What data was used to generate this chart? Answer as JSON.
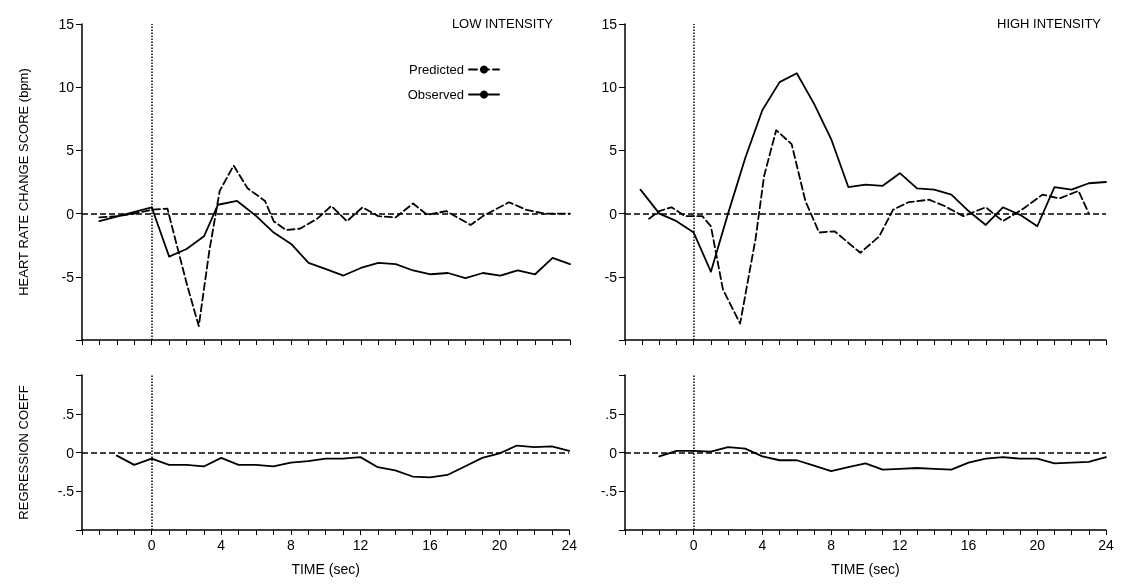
{
  "chart_data": [
    {
      "type": "line",
      "title": "LOW INTENSITY",
      "ylabel": "HEART RATE CHANGE SCORE (bpm)",
      "legend": "top right",
      "tick_labels": "y",
      "xlim": [
        -4,
        24
      ],
      "ylim": [
        -10,
        15
      ],
      "xticks": [
        {
          "value": -4,
          "label": null
        },
        {
          "value": -3,
          "label": null
        },
        {
          "value": -2,
          "label": null
        },
        {
          "value": -1,
          "label": null
        },
        0,
        {
          "value": 1,
          "label": null
        },
        {
          "value": 2,
          "label": null
        },
        {
          "value": 3,
          "label": null
        },
        4,
        {
          "value": 5,
          "label": null
        },
        {
          "value": 6,
          "label": null
        },
        {
          "value": 7,
          "label": null
        },
        8,
        {
          "value": 9,
          "label": null
        },
        {
          "value": 10,
          "label": null
        },
        {
          "value": 11,
          "label": null
        },
        12,
        {
          "value": 13,
          "label": null
        },
        {
          "value": 14,
          "label": null
        },
        {
          "value": 15,
          "label": null
        },
        16,
        {
          "value": 17,
          "label": null
        },
        {
          "value": 18,
          "label": null
        },
        {
          "value": 19,
          "label": null
        },
        20,
        {
          "value": 21,
          "label": null
        },
        {
          "value": 22,
          "label": null
        },
        {
          "value": 23,
          "label": null
        },
        24
      ],
      "yticks": [
        {
          "value": -10,
          "label": null
        },
        -5,
        0,
        5,
        10,
        15
      ],
      "ref_lines": [
        {
          "axis": "x",
          "value": 0,
          "line_style": "dotted"
        },
        {
          "axis": "y",
          "value": 0,
          "line_style": "dashed"
        }
      ],
      "series": [
        {
          "name": "Predicted",
          "color": "#000000",
          "line_style": "dashed",
          "x": [
            -3,
            -2,
            -1,
            0,
            0.9,
            2,
            2.7,
            3.3,
            3.9,
            4.7,
            5.5,
            6.5,
            7,
            7.7,
            8.5,
            9.5,
            10.3,
            11.2,
            12.1,
            13,
            14,
            15,
            15.8,
            16.9,
            18.3,
            19,
            20.5,
            21.5,
            22.5,
            24
          ],
          "values": [
            -0.3,
            -0.2,
            0,
            0.3,
            0.4,
            -5.5,
            -8.9,
            -3,
            1.8,
            3.8,
            2,
            1,
            -0.6,
            -1.3,
            -1.2,
            -0.4,
            0.6,
            -0.6,
            0.5,
            -0.2,
            -0.3,
            0.8,
            -0.1,
            0.2,
            -0.9,
            -0.2,
            0.9,
            0.3,
            0,
            0
          ]
        },
        {
          "name": "Observed",
          "color": "#000000",
          "line_style": "solid",
          "x": [
            -3,
            0,
            1,
            2,
            3,
            3.8,
            4.9,
            6,
            7,
            8,
            9,
            10,
            11,
            12,
            13,
            14,
            15,
            16,
            17,
            18,
            19,
            20,
            21,
            22,
            23,
            24
          ],
          "values": [
            -0.6,
            0.5,
            -3.4,
            -2.8,
            -1.8,
            0.7,
            1,
            -0.2,
            -1.5,
            -2.4,
            -3.9,
            -4.4,
            -4.9,
            -4.3,
            -3.9,
            -4,
            -4.5,
            -4.8,
            -4.7,
            -5.1,
            -4.7,
            -4.9,
            -4.5,
            -4.8,
            -3.5,
            -4
          ]
        }
      ]
    },
    {
      "type": "line",
      "title": "HIGH INTENSITY",
      "tick_labels": "y",
      "xlim": [
        -4,
        24
      ],
      "ylim": [
        -10,
        15
      ],
      "xticks": [
        {
          "value": -4,
          "label": null
        },
        {
          "value": -3,
          "label": null
        },
        {
          "value": -2,
          "label": null
        },
        {
          "value": -1,
          "label": null
        },
        0,
        {
          "value": 1,
          "label": null
        },
        {
          "value": 2,
          "label": null
        },
        {
          "value": 3,
          "label": null
        },
        4,
        {
          "value": 5,
          "label": null
        },
        {
          "value": 6,
          "label": null
        },
        {
          "value": 7,
          "label": null
        },
        8,
        {
          "value": 9,
          "label": null
        },
        {
          "value": 10,
          "label": null
        },
        {
          "value": 11,
          "label": null
        },
        12,
        {
          "value": 13,
          "label": null
        },
        {
          "value": 14,
          "label": null
        },
        {
          "value": 15,
          "label": null
        },
        16,
        {
          "value": 17,
          "label": null
        },
        {
          "value": 18,
          "label": null
        },
        {
          "value": 19,
          "label": null
        },
        20,
        {
          "value": 21,
          "label": null
        },
        {
          "value": 22,
          "label": null
        },
        {
          "value": 23,
          "label": null
        },
        24
      ],
      "yticks": [
        {
          "value": -10,
          "label": null
        },
        -5,
        0,
        5,
        10,
        15
      ],
      "ref_lines": [
        {
          "axis": "x",
          "value": 0,
          "line_style": "dotted"
        },
        {
          "axis": "y",
          "value": 0,
          "line_style": "dashed"
        }
      ],
      "series": [
        {
          "color": "#000000",
          "line_style": "dashed",
          "x": [
            -2.6,
            -2,
            -1.3,
            -0.5,
            0.5,
            1,
            1.7,
            2.7,
            3.6,
            4.1,
            4.8,
            5.7,
            6.5,
            7.3,
            8.2,
            9.7,
            10.8,
            11.6,
            12.5,
            13.7,
            14.6,
            15.7,
            17,
            18,
            19.2,
            20.3,
            21.3,
            22.4,
            23
          ],
          "values": [
            -0.4,
            0.2,
            0.5,
            -0.2,
            -0.2,
            -1,
            -6,
            -8.7,
            -2,
            3,
            6.6,
            5.5,
            1,
            -1.5,
            -1.4,
            -3.1,
            -1.8,
            0.3,
            0.9,
            1.1,
            0.6,
            -0.2,
            0.5,
            -0.6,
            0.4,
            1.5,
            1.2,
            1.8,
            0
          ]
        },
        {
          "color": "#000000",
          "line_style": "solid",
          "x": [
            -3.1,
            -2,
            -1,
            0,
            1,
            2,
            3,
            4,
            5,
            6,
            7,
            8,
            9,
            10,
            11,
            12,
            13,
            14,
            15,
            16,
            17,
            18,
            19,
            20,
            21,
            22,
            23,
            24
          ],
          "values": [
            1.9,
            0,
            -0.6,
            -1.5,
            -4.6,
            0,
            4.4,
            8.2,
            10.4,
            11.1,
            8.7,
            5.9,
            2.1,
            2.3,
            2.2,
            3.2,
            2,
            1.9,
            1.5,
            0.2,
            -0.9,
            0.5,
            -0.1,
            -1,
            2.1,
            1.9,
            2.4,
            2.5
          ]
        }
      ]
    },
    {
      "type": "line",
      "ylabel": "REGRESSION COEFF",
      "xlabel": "TIME (sec)",
      "xlim": [
        -4,
        24
      ],
      "ylim": [
        -1,
        1
      ],
      "xticks": [
        {
          "value": -4,
          "label": null
        },
        {
          "value": -3,
          "label": null
        },
        {
          "value": -2,
          "label": null
        },
        {
          "value": -1,
          "label": null
        },
        0,
        {
          "value": 1,
          "label": null
        },
        {
          "value": 2,
          "label": null
        },
        {
          "value": 3,
          "label": null
        },
        4,
        {
          "value": 5,
          "label": null
        },
        {
          "value": 6,
          "label": null
        },
        {
          "value": 7,
          "label": null
        },
        8,
        {
          "value": 9,
          "label": null
        },
        {
          "value": 10,
          "label": null
        },
        {
          "value": 11,
          "label": null
        },
        12,
        {
          "value": 13,
          "label": null
        },
        {
          "value": 14,
          "label": null
        },
        {
          "value": 15,
          "label": null
        },
        16,
        {
          "value": 17,
          "label": null
        },
        {
          "value": 18,
          "label": null
        },
        {
          "value": 19,
          "label": null
        },
        20,
        {
          "value": 21,
          "label": null
        },
        {
          "value": 22,
          "label": null
        },
        {
          "value": 23,
          "label": null
        },
        24
      ],
      "yticks": [
        {
          "value": -1,
          "label": null
        },
        {
          "value": -0.5,
          "label": "-.5"
        },
        0,
        {
          "value": 0.5,
          "label": ".5"
        },
        {
          "value": 1,
          "label": null
        }
      ],
      "ref_lines": [
        {
          "axis": "x",
          "value": 0,
          "line_style": "dotted"
        },
        {
          "axis": "y",
          "value": 0,
          "line_style": "dashed"
        }
      ],
      "series": [
        {
          "color": "#000000",
          "line_style": "solid",
          "x": [
            -2,
            -1,
            0,
            1,
            2,
            3,
            4,
            5,
            6,
            7,
            8,
            9,
            10,
            11,
            12,
            13,
            14,
            15,
            16,
            17,
            18,
            19,
            20,
            21,
            22,
            23,
            24
          ],
          "values": [
            -0.04,
            -0.16,
            -0.08,
            -0.16,
            -0.16,
            -0.18,
            -0.07,
            -0.16,
            -0.16,
            -0.18,
            -0.13,
            -0.11,
            -0.08,
            -0.08,
            -0.06,
            -0.19,
            -0.23,
            -0.31,
            -0.32,
            -0.29,
            -0.18,
            -0.07,
            -0.01,
            0.09,
            0.07,
            0.08,
            0.02
          ]
        }
      ]
    },
    {
      "type": "line",
      "xlabel": "TIME (sec)",
      "xlim": [
        -4,
        24
      ],
      "ylim": [
        -1,
        1
      ],
      "xticks": [
        {
          "value": -4,
          "label": null
        },
        {
          "value": -3,
          "label": null
        },
        {
          "value": -2,
          "label": null
        },
        {
          "value": -1,
          "label": null
        },
        0,
        {
          "value": 1,
          "label": null
        },
        {
          "value": 2,
          "label": null
        },
        {
          "value": 3,
          "label": null
        },
        4,
        {
          "value": 5,
          "label": null
        },
        {
          "value": 6,
          "label": null
        },
        {
          "value": 7,
          "label": null
        },
        8,
        {
          "value": 9,
          "label": null
        },
        {
          "value": 10,
          "label": null
        },
        {
          "value": 11,
          "label": null
        },
        12,
        {
          "value": 13,
          "label": null
        },
        {
          "value": 14,
          "label": null
        },
        {
          "value": 15,
          "label": null
        },
        16,
        {
          "value": 17,
          "label": null
        },
        {
          "value": 18,
          "label": null
        },
        {
          "value": 19,
          "label": null
        },
        20,
        {
          "value": 21,
          "label": null
        },
        {
          "value": 22,
          "label": null
        },
        {
          "value": 23,
          "label": null
        },
        24
      ],
      "yticks": [
        {
          "value": -1,
          "label": null
        },
        {
          "value": -0.5,
          "label": "-.5"
        },
        0,
        {
          "value": 0.5,
          "label": ".5"
        },
        {
          "value": 1,
          "label": null
        }
      ],
      "ref_lines": [
        {
          "axis": "x",
          "value": 0,
          "line_style": "dotted"
        },
        {
          "axis": "y",
          "value": 0,
          "line_style": "dashed"
        }
      ],
      "series": [
        {
          "color": "#000000",
          "line_style": "solid",
          "x": [
            -2,
            -1,
            0,
            1,
            2,
            3,
            4,
            5,
            6,
            7,
            8,
            9,
            10,
            11,
            12,
            13,
            14,
            15,
            16,
            17,
            18,
            19,
            20,
            21,
            22,
            23,
            24
          ],
          "values": [
            -0.05,
            0.02,
            0.02,
            0.01,
            0.07,
            0.05,
            -0.05,
            -0.1,
            -0.1,
            -0.17,
            -0.24,
            -0.19,
            -0.14,
            -0.22,
            -0.21,
            -0.2,
            -0.21,
            -0.22,
            -0.13,
            -0.08,
            -0.06,
            -0.08,
            -0.08,
            -0.14,
            -0.13,
            -0.12,
            -0.06
          ]
        }
      ]
    }
  ]
}
